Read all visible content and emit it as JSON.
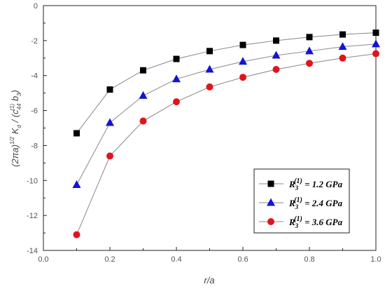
{
  "chart_data": {
    "type": "line",
    "title": "",
    "xlabel": "r/a",
    "ylabel": "(2πa)^(1/2) K_d / (c_44^(1) b_3)",
    "xlim": [
      0.0,
      1.0
    ],
    "ylim": [
      -14,
      0
    ],
    "x_ticks": [
      "0.0",
      "0.2",
      "0.4",
      "0.6",
      "0.8",
      "1.0"
    ],
    "y_ticks": [
      "0",
      "-2",
      "-4",
      "-6",
      "-8",
      "-10",
      "-12",
      "-14"
    ],
    "grid": false,
    "legend_position": "lower-right",
    "x": [
      0.1,
      0.2,
      0.3,
      0.4,
      0.5,
      0.6,
      0.7,
      0.8,
      0.9,
      1.0
    ],
    "series": [
      {
        "name": "R3(1) = 1.2 GPa",
        "legend_symbol": "R",
        "legend_sub": "3",
        "legend_sup": "(1)",
        "legend_rest": " = 1.2 GPa",
        "marker": "square",
        "color": "#000000",
        "values": [
          -7.3,
          -4.8,
          -3.7,
          -3.05,
          -2.6,
          -2.25,
          -2.0,
          -1.8,
          -1.65,
          -1.55
        ]
      },
      {
        "name": "R3(1) = 2.4 GPa",
        "legend_symbol": "R",
        "legend_sub": "3",
        "legend_sup": "(1)",
        "legend_rest": " = 2.4 GPa",
        "marker": "triangle",
        "color": "#1414d2",
        "values": [
          -10.25,
          -6.7,
          -5.15,
          -4.2,
          -3.65,
          -3.2,
          -2.85,
          -2.6,
          -2.35,
          -2.2
        ]
      },
      {
        "name": "R3(1) = 3.6 GPa",
        "legend_symbol": "R",
        "legend_sub": "3",
        "legend_sup": "(1)",
        "legend_rest": " = 3.6 GPa",
        "marker": "circle",
        "color": "#e0141e",
        "values": [
          -13.1,
          -8.6,
          -6.6,
          -5.5,
          -4.65,
          -4.1,
          -3.65,
          -3.3,
          -3.0,
          -2.75
        ]
      }
    ],
    "line_color": "#888888"
  }
}
